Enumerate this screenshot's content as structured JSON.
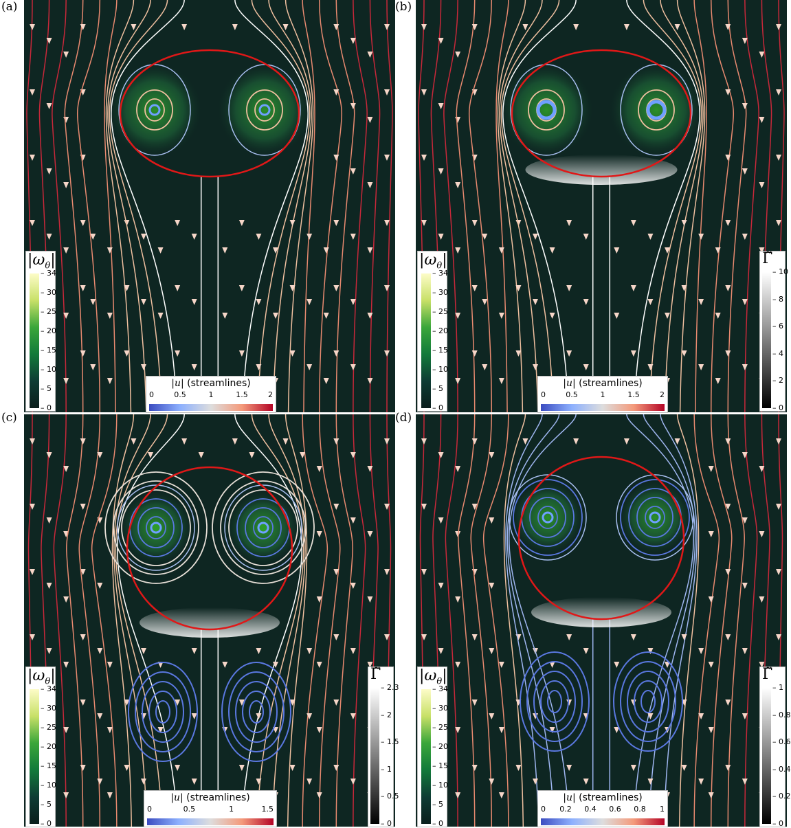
{
  "panels": [
    {
      "label": "(a)",
      "vortex_colorbar": {
        "title": "|ω",
        "sub": "θ",
        "suffix": "|",
        "ticks": [
          "34",
          "30",
          "25",
          "20",
          "15",
          "10",
          "5",
          "0"
        ]
      },
      "speed_colorbar": {
        "title": "|u|",
        "suffix": " (streamlines)",
        "ticks": [
          "0",
          "0.5",
          "1",
          "1.5",
          "2"
        ]
      },
      "gamma_colorbar": null,
      "shape": "oblate"
    },
    {
      "label": "(b)",
      "vortex_colorbar": {
        "title": "|ω",
        "sub": "θ",
        "suffix": "|",
        "ticks": [
          "34",
          "30",
          "25",
          "20",
          "15",
          "10",
          "5",
          "0"
        ]
      },
      "speed_colorbar": {
        "title": "|u|",
        "suffix": " (streamlines)",
        "ticks": [
          "0",
          "0.5",
          "1",
          "1.5",
          "2"
        ]
      },
      "gamma_colorbar": {
        "title": "Γ̃",
        "ticks": [
          "10",
          "8",
          "6",
          "4",
          "2",
          "0"
        ]
      },
      "shape": "oblate"
    },
    {
      "label": "(c)",
      "vortex_colorbar": {
        "title": "|ω",
        "sub": "θ",
        "suffix": "|",
        "ticks": [
          "34",
          "30",
          "25",
          "20",
          "15",
          "10",
          "5",
          "0"
        ]
      },
      "speed_colorbar": {
        "title": "|u|",
        "suffix": "  (streamlines)",
        "ticks": [
          "0",
          "0.5",
          "1",
          "1.5"
        ]
      },
      "gamma_colorbar": {
        "title": "Γ̃",
        "ticks": [
          "2.3",
          "2",
          "1.5",
          "1",
          "0.5",
          "0"
        ]
      },
      "shape": "sphere"
    },
    {
      "label": "(d)",
      "vortex_colorbar": {
        "title": "|ω",
        "sub": "θ",
        "suffix": "|",
        "ticks": [
          "34",
          "30",
          "25",
          "20",
          "15",
          "10",
          "5",
          "0"
        ]
      },
      "speed_colorbar": {
        "title": "|u|",
        "suffix": " (streamlines)",
        "ticks": [
          "0",
          "0.2",
          "0.4",
          "0.6",
          "0.8",
          "1"
        ]
      },
      "gamma_colorbar": {
        "title": "Γ̃",
        "ticks": [
          "1",
          "0.8",
          "0.6",
          "0.4",
          "0.2",
          "0"
        ]
      },
      "shape": "sphere"
    }
  ],
  "colors": {
    "background": "#0e2622",
    "interface": "#e01818",
    "vorticity_high": "#2e9a2a",
    "stream_fast": "#c8283a",
    "stream_mid": "#f0c0a0",
    "stream_slow": "#5a78e0"
  }
}
